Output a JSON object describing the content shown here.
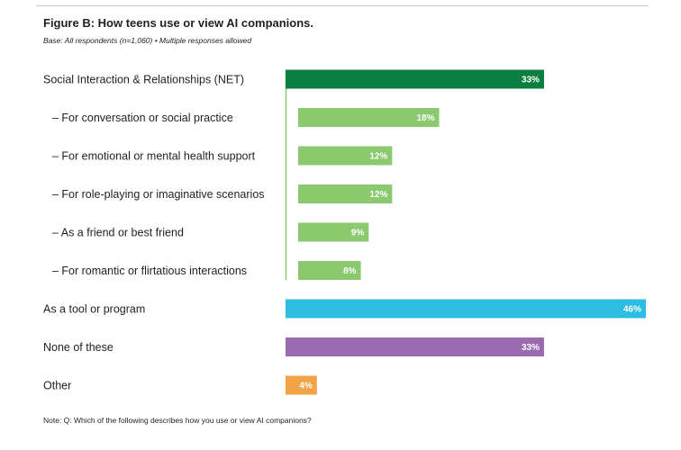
{
  "header": {
    "title": "Figure B: How teens use or view AI companions.",
    "base": "Base: All respondents (n=1,060) • Multiple responses allowed"
  },
  "footer": {
    "note": "Note: Q: Which of the following describes how you use or view AI companions?"
  },
  "colors": {
    "net": "#0a7f3f",
    "sub": "#8bc96f",
    "tool": "#2dbde3",
    "none": "#9b6bb1",
    "other": "#f2a347",
    "bracket": "#8bc96f"
  },
  "chart_data": {
    "type": "bar",
    "orientation": "horizontal",
    "title": "Figure B: How teens use or view AI companions.",
    "xlabel": "",
    "ylabel": "",
    "xlim": [
      0,
      46
    ],
    "unit": "%",
    "categories": [
      "Social Interaction & Relationships (NET)",
      "– For conversation or social practice",
      "– For emotional or mental health support",
      "– For role-playing or imaginative scenarios",
      "– As a friend or best friend",
      "– For romantic or flirtatious interactions",
      "As a tool or program",
      "None of these",
      "Other"
    ],
    "values": [
      33,
      18,
      12,
      12,
      9,
      8,
      46,
      33,
      4
    ],
    "labels": [
      "33%",
      "18%",
      "12%",
      "12%",
      "9%",
      "8%",
      "46%",
      "33%",
      "4%"
    ],
    "groups": [
      "net",
      "sub",
      "sub",
      "sub",
      "sub",
      "sub",
      "tool",
      "none",
      "other"
    ]
  }
}
